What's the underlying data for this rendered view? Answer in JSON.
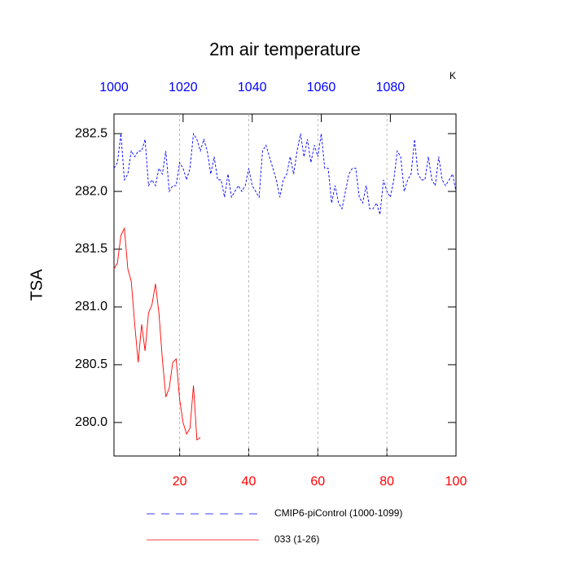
{
  "chart_data": {
    "type": "line",
    "title": "2m air temperature",
    "y_label": "TSA",
    "unit_label": "K",
    "xlim": [
      1,
      100
    ],
    "xticks": [
      20,
      40,
      60,
      80,
      100
    ],
    "xtick_color": "#ff0000",
    "x2lim": [
      1000,
      1099
    ],
    "x2ticks": [
      1000,
      1020,
      1040,
      1060,
      1080
    ],
    "x2tick_color": "#0000ff",
    "ylim": [
      279.71,
      282.67
    ],
    "yticks": [
      {
        "value": 280,
        "label": "280.0"
      },
      280.5,
      {
        "value": 281,
        "label": "281.0"
      },
      281.5,
      {
        "value": 282,
        "label": "282.0"
      },
      282.5
    ],
    "grid": true,
    "series": [
      {
        "name": "CMIP6-piControl (1000-1099)",
        "color": "#0000ff",
        "dash": true,
        "x": [
          1,
          2,
          3,
          4,
          5,
          6,
          7,
          8,
          9,
          10,
          11,
          12,
          13,
          14,
          15,
          16,
          17,
          18,
          19,
          20,
          21,
          22,
          23,
          24,
          25,
          26,
          27,
          28,
          29,
          30,
          31,
          32,
          33,
          34,
          35,
          36,
          37,
          38,
          39,
          40,
          41,
          42,
          43,
          44,
          45,
          46,
          47,
          48,
          49,
          50,
          51,
          52,
          53,
          54,
          55,
          56,
          57,
          58,
          59,
          60,
          61,
          62,
          63,
          64,
          65,
          66,
          67,
          68,
          69,
          70,
          71,
          72,
          73,
          74,
          75,
          76,
          77,
          78,
          79,
          80,
          81,
          82,
          83,
          84,
          85,
          86,
          87,
          88,
          89,
          90,
          91,
          92,
          93,
          94,
          95,
          96,
          97,
          98,
          99,
          100
        ],
        "values": [
          282.2,
          282.25,
          282.5,
          282.1,
          282.15,
          282.35,
          282.3,
          282.35,
          282.35,
          282.45,
          282.05,
          282.1,
          282.05,
          282.2,
          282.15,
          282.35,
          282.0,
          282.05,
          282.05,
          282.25,
          282.2,
          282.1,
          282.2,
          282.5,
          282.45,
          282.35,
          282.45,
          282.35,
          282.15,
          282.3,
          282.1,
          282.1,
          281.95,
          282.15,
          281.95,
          282.0,
          282.05,
          282.0,
          282.05,
          282.2,
          282.05,
          282.0,
          281.95,
          282.35,
          282.4,
          282.3,
          282.2,
          282.1,
          281.95,
          282.1,
          282.15,
          282.3,
          282.15,
          282.35,
          282.5,
          282.3,
          282.45,
          282.25,
          282.4,
          282.3,
          282.5,
          282.2,
          282.2,
          281.9,
          282.05,
          281.9,
          281.85,
          282.0,
          282.15,
          282.2,
          282.2,
          281.95,
          281.9,
          282.05,
          281.85,
          281.85,
          281.9,
          281.8,
          282.1,
          282.0,
          281.95,
          282.1,
          282.35,
          282.3,
          282.0,
          282.1,
          282.15,
          282.45,
          282.15,
          282.1,
          282.1,
          282.3,
          282.1,
          282.05,
          282.3,
          282.1,
          282.05,
          282.1,
          282.15,
          282.0
        ]
      },
      {
        "name": "033 (1-26)",
        "color": "#ff0000",
        "dash": false,
        "x": [
          1,
          2,
          3,
          4,
          5,
          6,
          7,
          8,
          9,
          10,
          11,
          12,
          13,
          14,
          15,
          16,
          17,
          18,
          19,
          20,
          21,
          22,
          23,
          24,
          25,
          26
        ],
        "values": [
          281.33,
          281.38,
          281.62,
          281.68,
          281.33,
          281.22,
          280.85,
          280.52,
          280.85,
          280.62,
          280.95,
          281.02,
          281.2,
          280.95,
          280.55,
          280.22,
          280.3,
          280.52,
          280.55,
          280.2,
          280.0,
          279.9,
          279.95,
          280.32,
          279.85,
          279.87
        ]
      }
    ]
  }
}
